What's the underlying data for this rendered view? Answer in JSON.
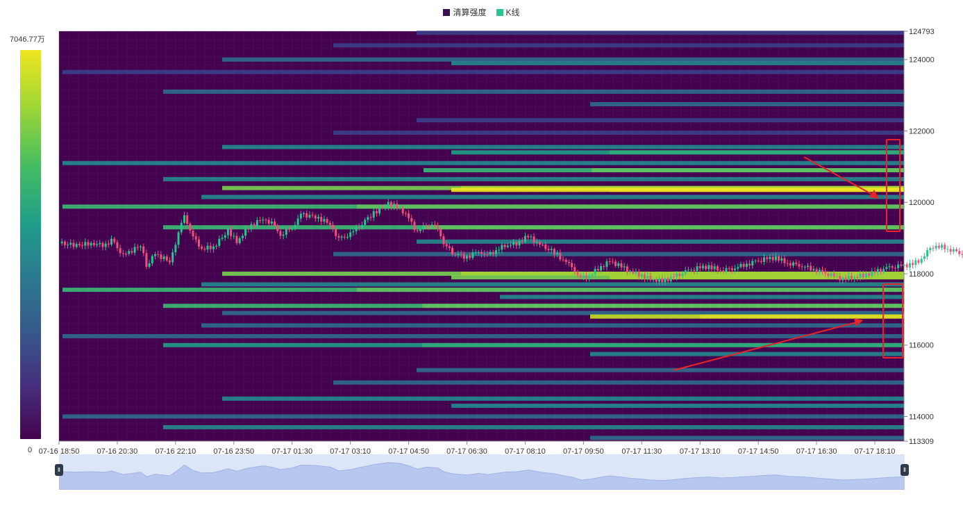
{
  "legend": {
    "items": [
      {
        "label": "清算强度",
        "color": "#3b0f4f"
      },
      {
        "label": "K线",
        "color": "#26c68e"
      }
    ]
  },
  "visual_map": {
    "max_label": "7046.77万",
    "min_label": "0"
  },
  "chart_data": {
    "type": "heatmap",
    "title": "",
    "y_axis": {
      "min": 113309,
      "max": 124793,
      "tick_labels": [
        "124793",
        "124000",
        "122000",
        "120000",
        "118000",
        "116000",
        "114000",
        "113309"
      ]
    },
    "x_axis": {
      "tick_labels": [
        "07-16 18:50",
        "07-16 20:30",
        "07-16 22:10",
        "07-16 23:50",
        "07-17 01:30",
        "07-17 03:10",
        "07-17 04:50",
        "07-17 06:30",
        "07-17 08:10",
        "07-17 09:50",
        "07-17 11:30",
        "07-17 13:10",
        "07-17 14:50",
        "07-17 16:30",
        "07-17 18:10"
      ]
    },
    "price_path": [
      [
        0,
        118850
      ],
      [
        0.6,
        118800
      ],
      [
        1.1,
        118850
      ],
      [
        1.6,
        118800
      ],
      [
        1.8,
        118950
      ],
      [
        2.2,
        118500
      ],
      [
        2.8,
        118800
      ],
      [
        3.0,
        118250
      ],
      [
        3.3,
        118550
      ],
      [
        3.8,
        118350
      ],
      [
        4.1,
        119100
      ],
      [
        4.3,
        119650
      ],
      [
        4.6,
        119000
      ],
      [
        4.9,
        118700
      ],
      [
        5.3,
        118750
      ],
      [
        5.8,
        119200
      ],
      [
        6.1,
        118900
      ],
      [
        6.5,
        119300
      ],
      [
        7.0,
        119550
      ],
      [
        7.3,
        119400
      ],
      [
        7.6,
        119100
      ],
      [
        8.0,
        119300
      ],
      [
        8.3,
        119650
      ],
      [
        8.8,
        119600
      ],
      [
        9.3,
        119400
      ],
      [
        9.6,
        118950
      ],
      [
        10.0,
        119100
      ],
      [
        10.3,
        119350
      ],
      [
        10.8,
        119700
      ],
      [
        11.3,
        119950
      ],
      [
        11.7,
        119850
      ],
      [
        12.0,
        119550
      ],
      [
        12.3,
        119150
      ],
      [
        12.6,
        119400
      ],
      [
        13.0,
        119300
      ],
      [
        13.2,
        118850
      ],
      [
        13.5,
        118600
      ],
      [
        14.0,
        118450
      ],
      [
        14.4,
        118650
      ],
      [
        14.7,
        118500
      ],
      [
        15.0,
        118650
      ],
      [
        15.3,
        118800
      ],
      [
        15.7,
        118850
      ],
      [
        16.1,
        119050
      ],
      [
        16.5,
        118800
      ],
      [
        17.0,
        118600
      ],
      [
        17.4,
        118300
      ],
      [
        17.6,
        118200
      ],
      [
        17.9,
        117850
      ],
      [
        18.2,
        117950
      ],
      [
        18.6,
        118200
      ],
      [
        18.9,
        118350
      ],
      [
        19.3,
        118200
      ],
      [
        19.6,
        118050
      ],
      [
        20.0,
        117950
      ],
      [
        20.3,
        117850
      ],
      [
        20.7,
        117800
      ],
      [
        21.1,
        117900
      ],
      [
        21.5,
        118050
      ],
      [
        21.9,
        118150
      ],
      [
        22.3,
        118200
      ],
      [
        22.7,
        118100
      ],
      [
        23.1,
        118150
      ],
      [
        23.5,
        118250
      ],
      [
        23.8,
        118300
      ],
      [
        24.2,
        118400
      ],
      [
        24.6,
        118450
      ],
      [
        25.0,
        118300
      ],
      [
        25.4,
        118250
      ],
      [
        25.8,
        118150
      ],
      [
        26.1,
        118050
      ],
      [
        26.5,
        117950
      ],
      [
        26.9,
        117850
      ],
      [
        27.2,
        117900
      ],
      [
        27.6,
        117950
      ],
      [
        28.0,
        118050
      ],
      [
        28.4,
        118150
      ],
      [
        28.8,
        118200
      ],
      [
        29.2,
        118250
      ],
      [
        29.5,
        118350
      ],
      [
        29.8,
        118600
      ],
      [
        30.1,
        118800
      ],
      [
        30.5,
        118700
      ],
      [
        30.9,
        118600
      ],
      [
        31.3,
        118450
      ],
      [
        31.6,
        118300
      ]
    ],
    "annotations": [
      {
        "type": "box",
        "label": ""
      },
      {
        "type": "box",
        "label": ""
      },
      {
        "type": "arrow",
        "label": ""
      },
      {
        "type": "arrow",
        "label": ""
      }
    ]
  },
  "zoom": {
    "start_label": "Ⅱ",
    "end_label": "Ⅱ"
  }
}
